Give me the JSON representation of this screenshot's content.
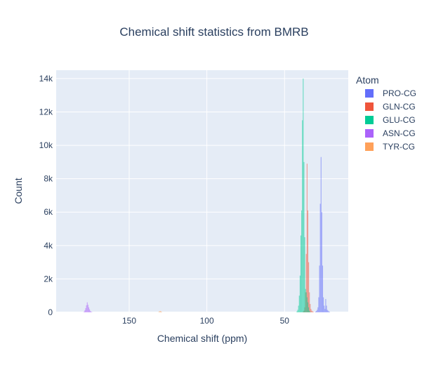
{
  "chart_data": {
    "type": "histogram",
    "title": "Chemical shift statistics from BMRB",
    "xlabel": "Chemical shift (ppm)",
    "ylabel": "Count",
    "x_reversed": true,
    "xlim": [
      197,
      9
    ],
    "ylim": [
      0,
      14500
    ],
    "grid": true,
    "x_ticks": [
      150,
      100,
      50
    ],
    "x_tick_labels": [
      "150",
      "100",
      "50"
    ],
    "y_ticks": [
      0,
      2000,
      4000,
      6000,
      8000,
      10000,
      12000,
      14000
    ],
    "y_tick_labels": [
      "0",
      "2k",
      "4k",
      "6k",
      "8k",
      "10k",
      "12k",
      "14k"
    ],
    "legend": {
      "title": "Atom",
      "position": "top-right"
    },
    "series": [
      {
        "name": "PRO-CG",
        "color": "#636efa",
        "x": [
          30,
          29.5,
          29,
          28.5,
          28,
          27.5,
          27,
          26.5,
          26,
          25.5,
          25,
          24.5,
          24,
          23.5,
          23,
          22.5,
          22,
          21.5,
          21
        ],
        "values": [
          40,
          80,
          150,
          300,
          900,
          2800,
          6500,
          9300,
          6000,
          2800,
          900,
          400,
          200,
          800,
          400,
          150,
          100,
          50,
          30
        ]
      },
      {
        "name": "GLN-CG",
        "color": "#EF553B",
        "x": [
          38,
          37.5,
          37,
          36.5,
          36,
          35.5,
          35,
          34.5,
          34,
          33.5,
          33,
          32.5,
          32,
          31.5
        ],
        "values": [
          50,
          100,
          300,
          1200,
          3500,
          8900,
          6100,
          3000,
          1200,
          500,
          200,
          100,
          60,
          30
        ]
      },
      {
        "name": "GLU-CG",
        "color": "#00cc96",
        "x": [
          42,
          41.5,
          41,
          40.5,
          40,
          39.5,
          39,
          38.5,
          38,
          37.5,
          37,
          36.5,
          36,
          35.5,
          35,
          34.5,
          34,
          33.5
        ],
        "values": [
          60,
          150,
          400,
          1000,
          2200,
          4600,
          6100,
          11500,
          14000,
          9000,
          4500,
          1400,
          1200,
          900,
          600,
          300,
          100,
          40
        ]
      },
      {
        "name": "ASN-CG",
        "color": "#ab63fa",
        "x": [
          179,
          178.5,
          178,
          177.5,
          177,
          176.5,
          176,
          175.5,
          175,
          174.5,
          174
        ],
        "values": [
          40,
          120,
          250,
          420,
          600,
          450,
          300,
          180,
          90,
          40,
          20
        ]
      },
      {
        "name": "TYR-CG",
        "color": "#FFA15A",
        "x": [
          131,
          130.5,
          130,
          129.5,
          129
        ],
        "values": [
          20,
          60,
          80,
          50,
          20
        ]
      }
    ]
  }
}
